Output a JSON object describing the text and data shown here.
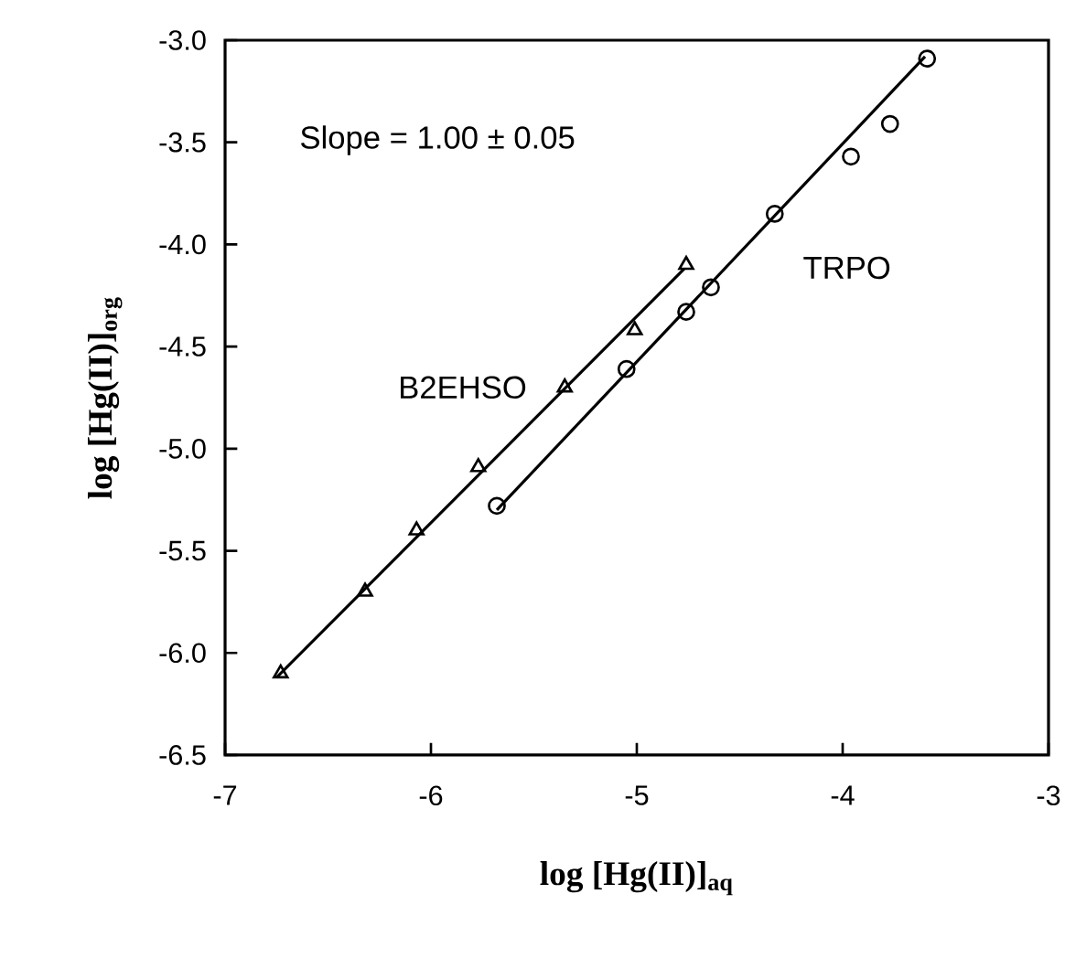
{
  "chart_data": {
    "type": "scatter",
    "xlabel": "log [Hg(II)]$_{aq}$",
    "ylabel": "log [Hg(II)]$_{org}$",
    "annotations": [
      "Slope = 1.00 ± 0.05"
    ],
    "series": [
      {
        "name": "B2EHSO",
        "color": "#000000",
        "marker": "triangle",
        "x": [
          -6.73,
          -6.32,
          -6.07,
          -5.77,
          -5.35,
          -5.01,
          -4.76
        ],
        "values": [
          -6.1,
          -5.7,
          -5.4,
          -5.09,
          -4.7,
          -4.42,
          -4.1
        ]
      },
      {
        "name": "TRPO",
        "color": "#000000",
        "marker": "circle",
        "x": [
          -5.68,
          -5.05,
          -4.76,
          -4.64,
          -4.33,
          -3.96,
          -3.77,
          -3.59
        ],
        "values": [
          -5.28,
          -4.61,
          -4.33,
          -4.21,
          -3.85,
          -3.57,
          -3.41,
          -3.09
        ]
      },
      {
        "type": "line",
        "color": "#000000",
        "marker": "none",
        "line_style": "solid",
        "x": [
          -6.75,
          -4.77
        ],
        "values": [
          -6.12,
          -4.12
        ]
      },
      {
        "type": "line",
        "color": "#000000",
        "marker": "none",
        "line_style": "solid",
        "x": [
          -5.68,
          -3.6
        ],
        "values": [
          -5.3,
          -3.08
        ]
      }
    ],
    "xlim": [
      -7,
      -3
    ],
    "xticks": [
      -7,
      -6,
      -5,
      -4,
      -3
    ],
    "ylim": [
      -6.5,
      -3
    ],
    "yticks": [
      {
        "value": -6.5,
        "label": "-6.5"
      },
      {
        "value": -6,
        "label": "-6.0"
      },
      {
        "value": -5.5,
        "label": "-5.5"
      },
      {
        "value": -5,
        "label": "-5.0"
      },
      {
        "value": -4.5,
        "label": "-4.5"
      },
      {
        "value": -4,
        "label": "-4.0"
      },
      {
        "value": -3.5,
        "label": "-3.5"
      },
      {
        "value": -3,
        "label": "-3.0"
      }
    ],
    "grid": false
  }
}
